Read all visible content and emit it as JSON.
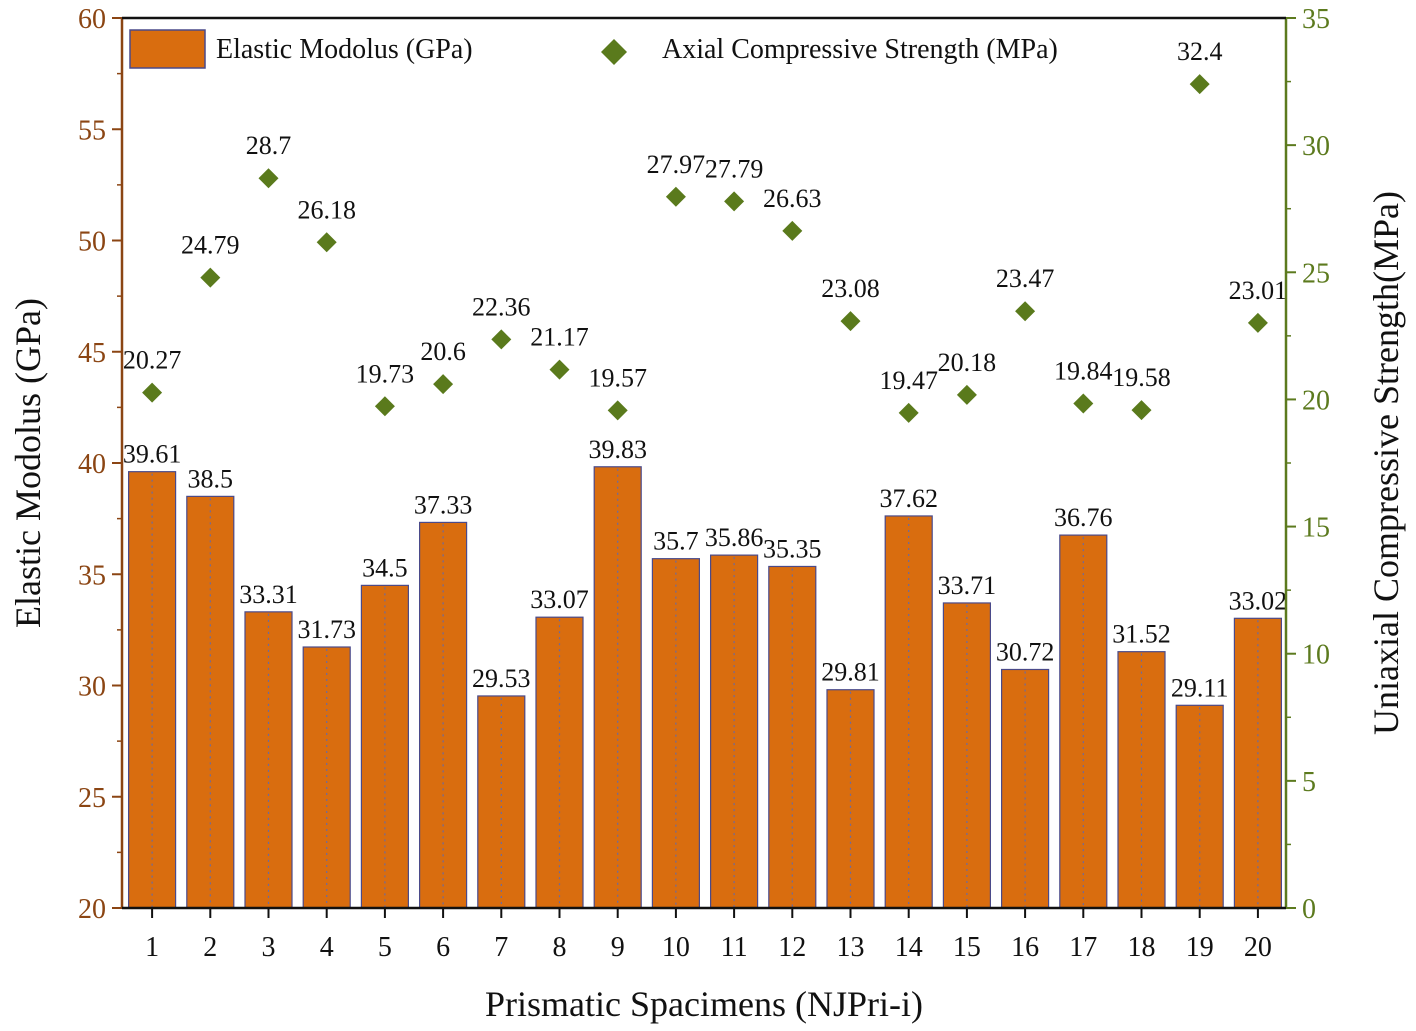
{
  "chart_data": {
    "type": "bar",
    "title": "",
    "xlabel": "Prismatic Spacimens (NJPri-i)",
    "categories": [
      "1",
      "2",
      "3",
      "4",
      "5",
      "6",
      "7",
      "8",
      "9",
      "10",
      "11",
      "12",
      "13",
      "14",
      "15",
      "16",
      "17",
      "18",
      "19",
      "20"
    ],
    "series": [
      {
        "name": "Elastic Modolus (GPa)",
        "type": "bar",
        "axis": "left",
        "color": "#D96D0F",
        "values": [
          39.61,
          38.5,
          33.31,
          31.73,
          34.5,
          37.33,
          29.53,
          33.07,
          39.83,
          35.7,
          35.86,
          35.35,
          29.81,
          37.62,
          33.71,
          30.72,
          36.76,
          31.52,
          29.11,
          33.02
        ],
        "labels": [
          "39.61",
          "38.5",
          "33.31",
          "31.73",
          "34.5",
          "37.33",
          "29.53",
          "33.07",
          "39.83",
          "35.7",
          "35.86",
          "35.35",
          "29.81",
          "37.62",
          "33.71",
          "30.72",
          "36.76",
          "31.52",
          "29.11",
          "33.02"
        ]
      },
      {
        "name": "Axial Compressive Strength (MPa)",
        "type": "scatter",
        "marker": "diamond",
        "axis": "right",
        "color": "#5A7A1C",
        "values": [
          20.27,
          24.79,
          28.7,
          26.18,
          19.73,
          20.6,
          22.36,
          21.17,
          19.57,
          27.97,
          27.79,
          26.63,
          23.08,
          19.47,
          20.18,
          23.47,
          19.84,
          19.58,
          32.4,
          23.01
        ],
        "labels": [
          "20.27",
          "24.79",
          "28.7",
          "26.18",
          "19.73",
          "20.6",
          "22.36",
          "21.17",
          "19.57",
          "27.97",
          "27.79",
          "26.63",
          "23.08",
          "19.47",
          "20.18",
          "23.47",
          "19.84",
          "19.58",
          "32.4",
          "23.01"
        ]
      }
    ],
    "y_left": {
      "label": "Elastic Modolus (GPa)",
      "lim": [
        20,
        60
      ],
      "ticks": [
        "20",
        "25",
        "30",
        "35",
        "40",
        "45",
        "50",
        "55",
        "60"
      ],
      "color": "#8B4513"
    },
    "y_right": {
      "label": "Uniaxial Compressive Strength(MPa)",
      "lim": [
        0,
        35
      ],
      "ticks": [
        "0",
        "5",
        "10",
        "15",
        "20",
        "25",
        "30",
        "35"
      ],
      "color": "#5C7A1E"
    },
    "legend": {
      "placement": "top"
    },
    "grid": false
  }
}
